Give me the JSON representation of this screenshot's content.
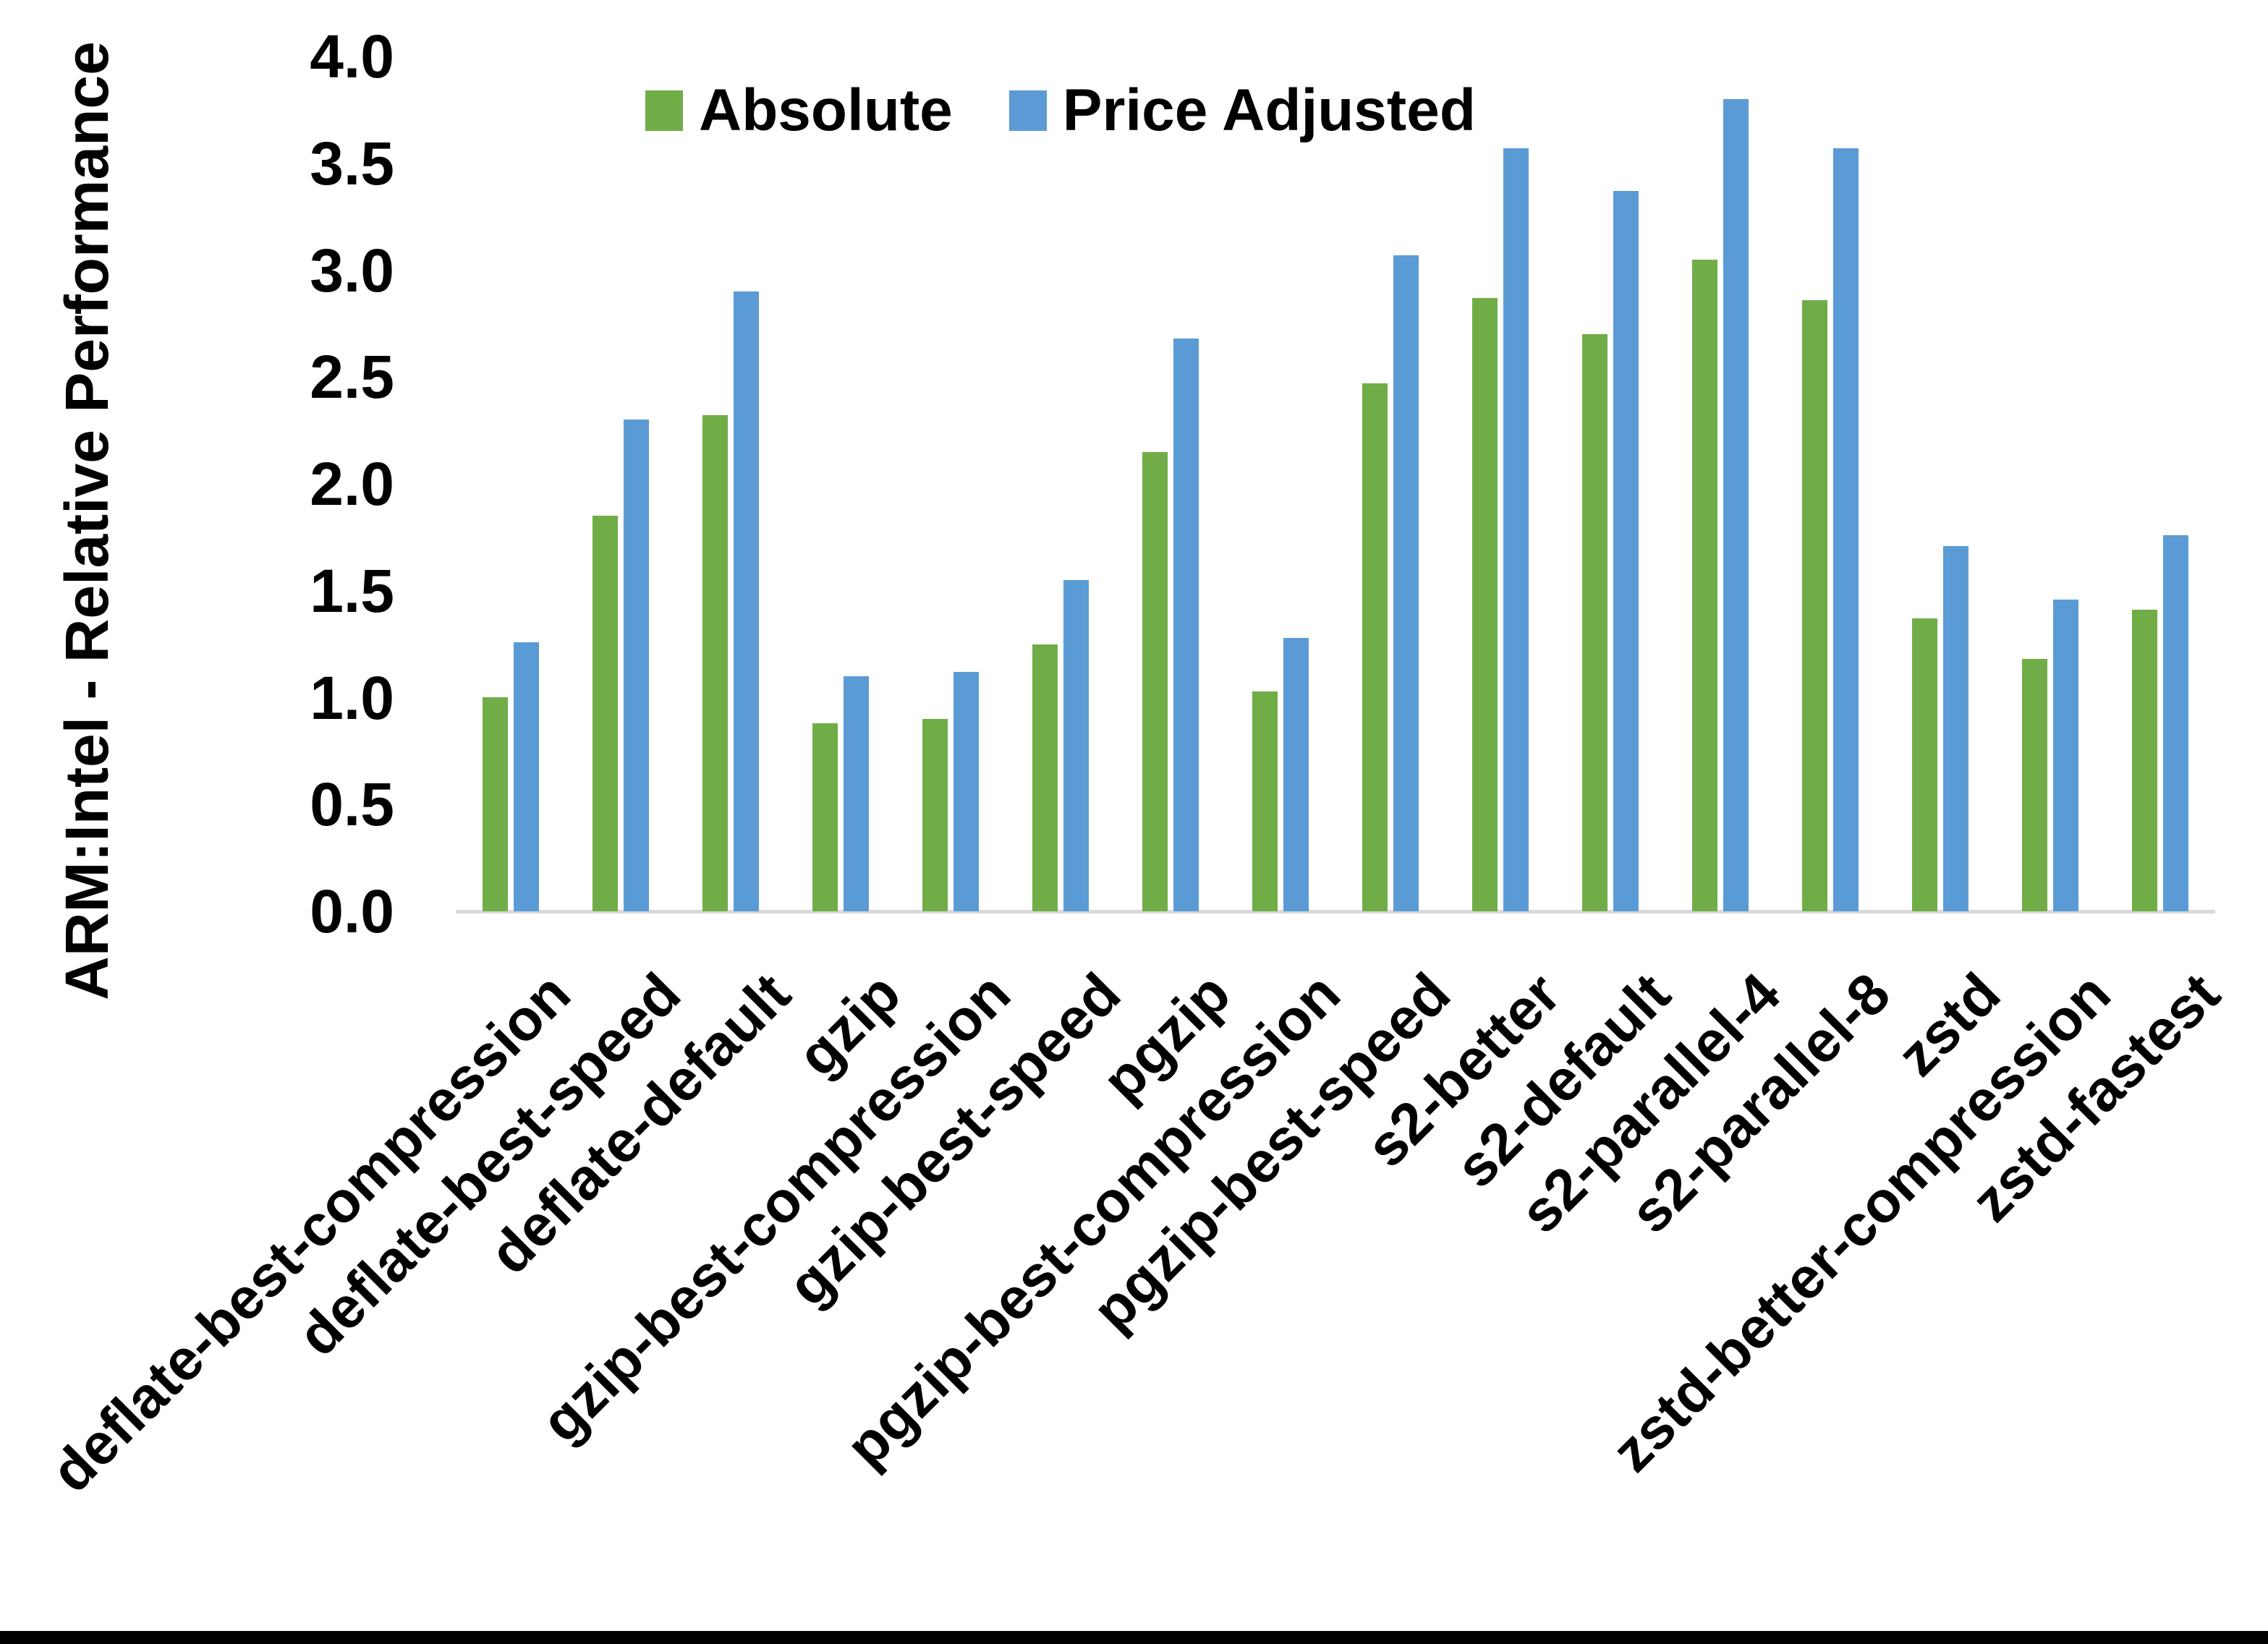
{
  "chart_data": {
    "type": "bar",
    "title": "",
    "ylabel": "ARM:Intel - Relative Performance",
    "xlabel": "",
    "categories": [
      "deflate-best-compression",
      "deflate-best-speed",
      "deflate-default",
      "gzip",
      "gzip-best-compression",
      "gzip-best-speed",
      "pgzip",
      "pgzip-best-compression",
      "pgzip-best-speed",
      "s2-better",
      "s2-default",
      "s2-parallel-4",
      "s2-parallel-8",
      "zstd",
      "zstd-better-compression",
      "zstd-fastest"
    ],
    "series": [
      {
        "name": "Absolute",
        "color": "#70AD47",
        "values": [
          1.0,
          1.85,
          2.32,
          0.88,
          0.9,
          1.25,
          2.15,
          1.03,
          2.47,
          2.87,
          2.7,
          3.05,
          2.86,
          1.37,
          1.18,
          1.41
        ]
      },
      {
        "name": "Price Adjusted",
        "color": "#5B9BD5",
        "values": [
          1.26,
          2.3,
          2.9,
          1.1,
          1.12,
          1.55,
          2.68,
          1.28,
          3.07,
          3.57,
          3.37,
          3.8,
          3.57,
          1.71,
          1.46,
          1.76
        ]
      }
    ],
    "ylim": [
      0.0,
      4.0
    ],
    "yticks": [
      "0.0",
      "0.5",
      "1.0",
      "1.5",
      "2.0",
      "2.5",
      "3.0",
      "3.5",
      "4.0"
    ],
    "grid": false,
    "legend_position": "top-center"
  },
  "colors": {
    "background": "#FFFFFF",
    "text": "#000000",
    "axis_line": "#D9D9D9",
    "bottom_rule": "#000000"
  }
}
